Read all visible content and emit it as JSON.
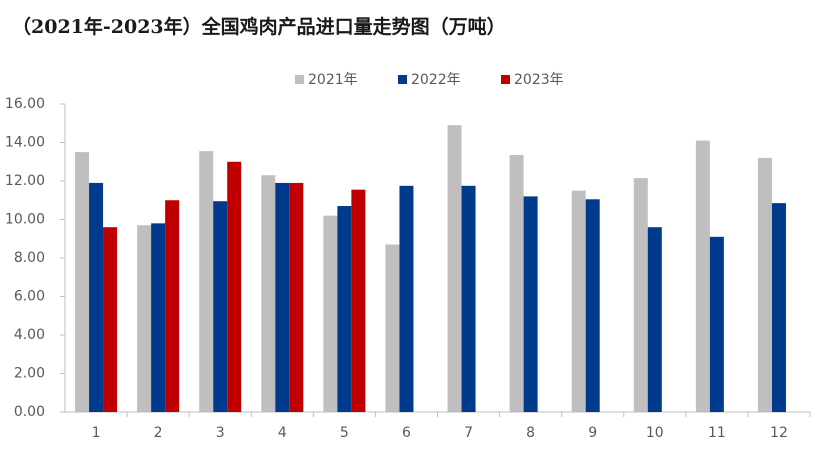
{
  "chart_data": {
    "type": "bar",
    "title": "（2021年-2023年）全国鸡肉产品进口量走势图（万吨）",
    "categories": [
      "1",
      "2",
      "3",
      "4",
      "5",
      "6",
      "7",
      "8",
      "9",
      "10",
      "11",
      "12"
    ],
    "series": [
      {
        "name": "2021年",
        "color": "#bfbfbf",
        "values": [
          13.5,
          9.7,
          13.55,
          12.3,
          10.2,
          8.7,
          14.9,
          13.35,
          11.5,
          12.15,
          14.1,
          13.2
        ]
      },
      {
        "name": "2022年",
        "color": "#003a8c",
        "values": [
          11.9,
          9.8,
          10.95,
          11.9,
          10.7,
          11.75,
          11.75,
          11.2,
          11.05,
          9.6,
          9.1,
          10.85
        ]
      },
      {
        "name": "2023年",
        "color": "#c00000",
        "values": [
          9.6,
          11.0,
          13.0,
          11.9,
          11.55,
          null,
          null,
          null,
          null,
          null,
          null,
          null
        ]
      }
    ],
    "ylim": [
      0,
      16
    ],
    "yticks": [
      {
        "value": 0,
        "label": "0.00"
      },
      {
        "value": 2,
        "label": "2.00"
      },
      {
        "value": 4,
        "label": "4.00"
      },
      {
        "value": 6,
        "label": "6.00"
      },
      {
        "value": 8,
        "label": "8.00"
      },
      {
        "value": 10,
        "label": "10.00"
      },
      {
        "value": 12,
        "label": "12.00"
      },
      {
        "value": 14,
        "label": "14.00"
      },
      {
        "value": 16,
        "label": "16.00"
      }
    ],
    "legend": "top"
  }
}
